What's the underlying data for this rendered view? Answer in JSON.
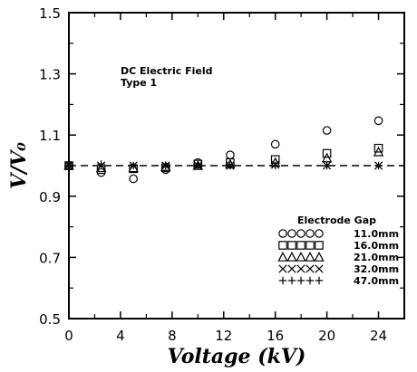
{
  "chart_data": {
    "type": "scatter",
    "xlabel": "Voltage (kV)",
    "ylabel": "V/V₀",
    "xlim": [
      0,
      26
    ],
    "ylim": [
      0.5,
      1.5
    ],
    "xticks": [
      "0",
      "4",
      "8",
      "12",
      "16",
      "20",
      "24"
    ],
    "xtick_values": [
      0,
      4,
      8,
      12,
      16,
      20,
      24
    ],
    "yticks": [
      "0.5",
      "0.7",
      "0.9",
      "1.1",
      "1.3",
      "1.5"
    ],
    "ytick_values": [
      0.5,
      0.7,
      0.9,
      1.1,
      1.3,
      1.5
    ],
    "annotation": [
      "DC Electric Field",
      "Type 1"
    ],
    "reference_line": {
      "y": 1.0,
      "style": "dashed"
    },
    "legend_title": "Electrode Gap",
    "legend_position": "bottom-right",
    "series": [
      {
        "name": "11.0mm",
        "marker": "circle",
        "x": [
          0,
          2.5,
          5,
          7.5,
          10,
          12.5,
          16,
          20,
          24
        ],
        "y": [
          1.0,
          0.977,
          0.957,
          0.987,
          1.01,
          1.035,
          1.07,
          1.115,
          1.147
        ]
      },
      {
        "name": "16.0mm",
        "marker": "square",
        "x": [
          0,
          2.5,
          5,
          7.5,
          10,
          12.5,
          16,
          20,
          24
        ],
        "y": [
          1.0,
          0.987,
          0.99,
          0.993,
          1.005,
          1.01,
          1.02,
          1.04,
          1.057
        ]
      },
      {
        "name": "21.0mm",
        "marker": "triangle",
        "x": [
          0,
          2.5,
          5,
          7.5,
          10,
          12.5,
          16,
          20,
          24
        ],
        "y": [
          1.0,
          0.993,
          0.993,
          0.997,
          1.0,
          1.005,
          1.01,
          1.025,
          1.045
        ]
      },
      {
        "name": "32.0mm",
        "marker": "x",
        "x": [
          0,
          2.5,
          5,
          7.5,
          10,
          12.5,
          16,
          20,
          24
        ],
        "y": [
          1.0,
          1.0,
          1.0,
          1.0,
          1.0,
          1.0,
          1.003,
          1.0,
          1.0
        ]
      },
      {
        "name": "47.0mm",
        "marker": "plus",
        "x": [
          0,
          2.5,
          5,
          7.5,
          10,
          12.5,
          16,
          20,
          24
        ],
        "y": [
          1.0,
          1.005,
          1.0,
          1.0,
          1.0,
          1.0,
          1.0,
          1.0,
          1.0
        ]
      }
    ]
  }
}
